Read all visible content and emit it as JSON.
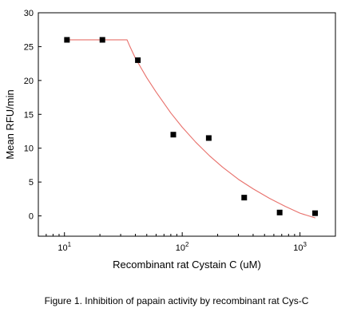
{
  "caption": "Figure 1. Inhibition of papain activity by recombinant rat Cys-C",
  "chart_data": {
    "type": "scatter",
    "title": "",
    "xlabel": "Recombinant rat Cystain C (uM)",
    "ylabel": "Mean RFU/min",
    "xscale": "log",
    "xlim": [
      6,
      2000
    ],
    "ylim": [
      -3,
      30
    ],
    "xtick_labels": [
      "10",
      "10",
      "10"
    ],
    "xtick_sup": [
      "1",
      "2",
      "3"
    ],
    "xtick_values": [
      10,
      100,
      1000
    ],
    "yticks": [
      0,
      5,
      10,
      15,
      20,
      25,
      30
    ],
    "grid": false,
    "legend": "none",
    "colors": {
      "points": "#000000",
      "fit_line": "#e8706b",
      "axes": "#000000"
    },
    "series": [
      {
        "kind": "points",
        "x": [
          10.5,
          21,
          42,
          84,
          168,
          336,
          672,
          1344
        ],
        "y": [
          26,
          26,
          23,
          12,
          11.5,
          2.7,
          0.5,
          0.4
        ]
      },
      {
        "kind": "fit_line",
        "x": [
          10.5,
          20,
          30,
          34,
          36,
          40,
          50,
          60,
          80,
          100,
          130,
          170,
          220,
          300,
          400,
          550,
          750,
          1000,
          1350
        ],
        "y": [
          26,
          26,
          26,
          26,
          25,
          23.3,
          20.4,
          18.3,
          15.2,
          13.1,
          10.9,
          8.9,
          7.2,
          5.4,
          4.0,
          2.6,
          1.4,
          0.4,
          -0.3
        ]
      }
    ]
  }
}
